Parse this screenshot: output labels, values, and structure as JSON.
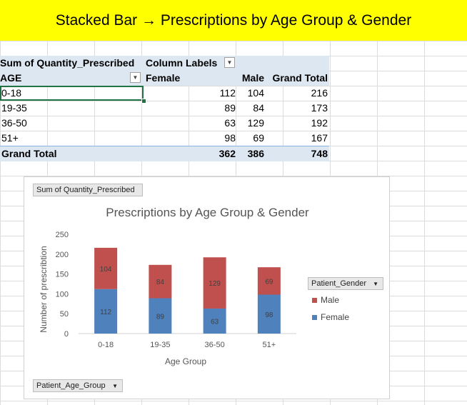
{
  "banner": {
    "title": "Stacked Bar → Prescriptions by Age Group & Gender"
  },
  "pivot": {
    "value_field": "Sum of Quantity_Prescribed",
    "column_labels": "Column Labels",
    "row_header": "AGE",
    "col_female": "Female",
    "col_male": "Male",
    "col_total": "Grand Total",
    "rows": [
      {
        "label": "0-18",
        "female": "112",
        "male": "104",
        "total": "216"
      },
      {
        "label": "19-35",
        "female": "89",
        "male": "84",
        "total": "173"
      },
      {
        "label": "36-50",
        "female": "63",
        "male": "129",
        "total": "192"
      },
      {
        "label": "51+",
        "female": "98",
        "male": "69",
        "total": "167"
      }
    ],
    "grand": {
      "label": "Grand Total",
      "female": "362",
      "male": "386",
      "total": "748"
    }
  },
  "chart_buttons": {
    "value_field": "Sum of Quantity_Prescribed",
    "legend_field": "Patient_Gender",
    "axis_field": "Patient_Age_Group"
  },
  "colors": {
    "male": "#c0504d",
    "female": "#4f81bd"
  },
  "chart_data": {
    "type": "bar",
    "stacked": true,
    "title": "Prescriptions by Age Group & Gender",
    "xlabel": "Age Group",
    "ylabel": "Number of prescribtion",
    "categories": [
      "0-18",
      "19-35",
      "36-50",
      "51+"
    ],
    "series": [
      {
        "name": "Female",
        "values": [
          112,
          89,
          63,
          98
        ]
      },
      {
        "name": "Male",
        "values": [
          104,
          84,
          129,
          69
        ]
      }
    ],
    "ylim": [
      0,
      250
    ],
    "yticks": [
      0,
      50,
      100,
      150,
      200,
      250
    ],
    "legend": "right",
    "legend_entries": [
      "Male",
      "Female"
    ],
    "grid": false
  }
}
